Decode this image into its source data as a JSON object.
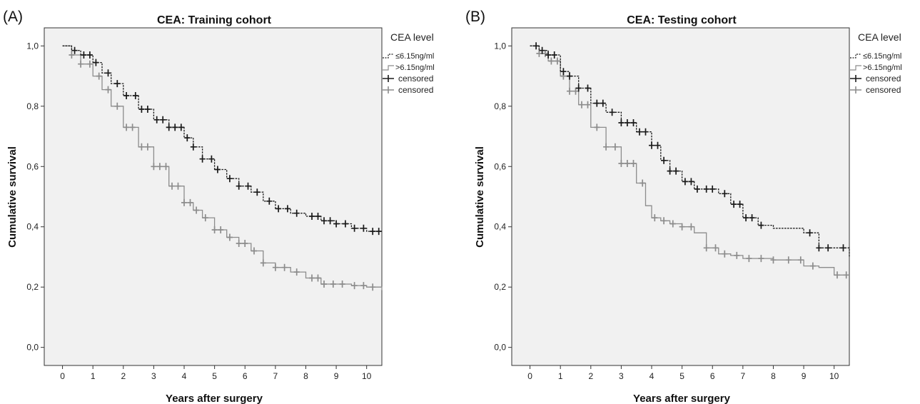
{
  "chart_data": [
    {
      "type": "line",
      "step": true,
      "panel_label": "(A)",
      "title": "CEA: Training cohort",
      "xlabel": "Years after surgery",
      "ylabel": "Cumulative survival",
      "xlim": [
        -0.6,
        10.5
      ],
      "ylim": [
        -0.06,
        1.06
      ],
      "x_ticks": [
        "0",
        "1",
        "2",
        "3",
        "4",
        "5",
        "6",
        "7",
        "8",
        "9",
        "10"
      ],
      "y_ticks": [
        "0,0",
        "0,2",
        "0,4",
        "0,6",
        "0,8",
        "1,0"
      ],
      "legend": {
        "title": "CEA level",
        "placement": "right",
        "entries": [
          "≤6.15ng/ml",
          ">6.15ng/ml",
          "censored",
          "censored"
        ]
      },
      "grid": false,
      "series": [
        {
          "name": "≤6.15ng/ml",
          "color": "#1a1a1a",
          "dash": true,
          "x": [
            0,
            0.3,
            0.6,
            1.0,
            1.3,
            1.6,
            2.0,
            2.5,
            3.0,
            3.5,
            4.0,
            4.3,
            4.6,
            5.0,
            5.4,
            5.8,
            6.2,
            6.6,
            7.0,
            7.5,
            8.0,
            8.5,
            9.0,
            9.5,
            10.0,
            10.5
          ],
          "y": [
            1.0,
            0.985,
            0.97,
            0.945,
            0.91,
            0.875,
            0.835,
            0.79,
            0.755,
            0.73,
            0.695,
            0.665,
            0.625,
            0.59,
            0.56,
            0.535,
            0.515,
            0.485,
            0.46,
            0.445,
            0.435,
            0.42,
            0.41,
            0.395,
            0.385,
            0.385
          ],
          "censored": [
            0.4,
            0.7,
            0.9,
            1.1,
            1.5,
            1.8,
            2.1,
            2.4,
            2.6,
            2.8,
            3.1,
            3.3,
            3.5,
            3.7,
            3.9,
            4.1,
            4.3,
            4.6,
            4.9,
            5.1,
            5.5,
            5.8,
            6.1,
            6.4,
            6.8,
            7.1,
            7.4,
            7.7,
            8.2,
            8.4,
            8.6,
            8.8,
            9.0,
            9.3,
            9.6,
            9.9,
            10.2,
            10.4
          ]
        },
        {
          "name": ">6.15ng/ml",
          "color": "#8c8c8c",
          "dash": false,
          "x": [
            0,
            0.3,
            0.6,
            1.0,
            1.3,
            1.6,
            2.0,
            2.5,
            3.0,
            3.5,
            4.0,
            4.3,
            4.6,
            5.0,
            5.4,
            5.8,
            6.2,
            6.6,
            7.0,
            7.5,
            8.0,
            8.5,
            9.0,
            9.5,
            10.0,
            10.5
          ],
          "y": [
            1.0,
            0.97,
            0.94,
            0.9,
            0.855,
            0.8,
            0.73,
            0.665,
            0.6,
            0.535,
            0.48,
            0.455,
            0.43,
            0.39,
            0.365,
            0.345,
            0.32,
            0.28,
            0.265,
            0.25,
            0.23,
            0.21,
            0.21,
            0.205,
            0.2,
            0.19
          ],
          "censored": [
            0.3,
            0.6,
            0.9,
            1.2,
            1.5,
            1.8,
            2.1,
            2.3,
            2.6,
            2.8,
            3.0,
            3.2,
            3.4,
            3.6,
            3.8,
            4.0,
            4.2,
            4.4,
            4.7,
            5.0,
            5.2,
            5.5,
            5.8,
            6.0,
            6.3,
            6.6,
            7.0,
            7.3,
            7.7,
            8.2,
            8.4,
            8.6,
            8.9,
            9.2,
            9.6,
            9.9,
            10.2
          ]
        }
      ]
    },
    {
      "type": "line",
      "step": true,
      "panel_label": "(B)",
      "title": "CEA: Testing cohort",
      "xlabel": "Years after surgery",
      "ylabel": "Cumulative survival",
      "xlim": [
        -0.6,
        10.5
      ],
      "ylim": [
        -0.06,
        1.06
      ],
      "x_ticks": [
        "0",
        "1",
        "2",
        "3",
        "4",
        "5",
        "6",
        "7",
        "8",
        "9",
        "10"
      ],
      "y_ticks": [
        "0,0",
        "0,2",
        "0,4",
        "0,6",
        "0,8",
        "1,0"
      ],
      "legend": {
        "title": "CEA level",
        "placement": "right",
        "entries": [
          "≤6.15ng/ml",
          ">6.15ng/ml",
          "censored",
          "censored"
        ]
      },
      "grid": false,
      "series": [
        {
          "name": "≤6.15ng/ml",
          "color": "#1a1a1a",
          "dash": true,
          "x": [
            0,
            0.3,
            0.6,
            1.0,
            1.3,
            1.6,
            2.0,
            2.5,
            3.0,
            3.5,
            4.0,
            4.3,
            4.6,
            5.0,
            5.4,
            5.8,
            6.2,
            6.6,
            7.0,
            7.5,
            8.0,
            8.5,
            9.0,
            9.5,
            10.0,
            10.5
          ],
          "y": [
            1.0,
            0.985,
            0.97,
            0.915,
            0.9,
            0.86,
            0.81,
            0.78,
            0.745,
            0.715,
            0.67,
            0.62,
            0.585,
            0.55,
            0.525,
            0.525,
            0.51,
            0.475,
            0.43,
            0.405,
            0.395,
            0.395,
            0.38,
            0.33,
            0.33,
            0.3
          ],
          "censored": [
            0.2,
            0.4,
            0.6,
            0.8,
            1.1,
            1.3,
            1.6,
            1.9,
            2.2,
            2.4,
            2.7,
            3.0,
            3.2,
            3.4,
            3.6,
            3.8,
            4.0,
            4.2,
            4.4,
            4.6,
            4.8,
            5.1,
            5.3,
            5.5,
            5.8,
            6.0,
            6.4,
            6.7,
            6.9,
            7.1,
            7.3,
            7.6,
            9.2,
            9.5,
            9.8,
            10.3
          ]
        },
        {
          "name": ">6.15ng/ml",
          "color": "#8c8c8c",
          "dash": false,
          "x": [
            0,
            0.3,
            0.6,
            1.0,
            1.3,
            1.6,
            2.0,
            2.5,
            3.0,
            3.5,
            3.8,
            4.0,
            4.3,
            4.6,
            5.0,
            5.4,
            5.8,
            6.2,
            6.6,
            7.0,
            7.5,
            8.0,
            8.5,
            9.0,
            9.5,
            10.0,
            10.5
          ],
          "y": [
            1.0,
            0.975,
            0.95,
            0.9,
            0.85,
            0.805,
            0.73,
            0.665,
            0.61,
            0.545,
            0.47,
            0.43,
            0.42,
            0.41,
            0.4,
            0.38,
            0.33,
            0.31,
            0.305,
            0.295,
            0.295,
            0.29,
            0.29,
            0.27,
            0.265,
            0.24,
            0.24
          ],
          "censored": [
            0.3,
            0.5,
            0.7,
            0.9,
            1.1,
            1.3,
            1.5,
            1.7,
            1.9,
            2.2,
            2.5,
            2.8,
            3.0,
            3.2,
            3.4,
            3.7,
            4.1,
            4.4,
            4.7,
            5.0,
            5.3,
            5.8,
            6.1,
            6.4,
            6.8,
            7.2,
            7.6,
            8.0,
            8.5,
            8.9,
            9.3,
            10.1,
            10.4
          ]
        }
      ]
    }
  ]
}
